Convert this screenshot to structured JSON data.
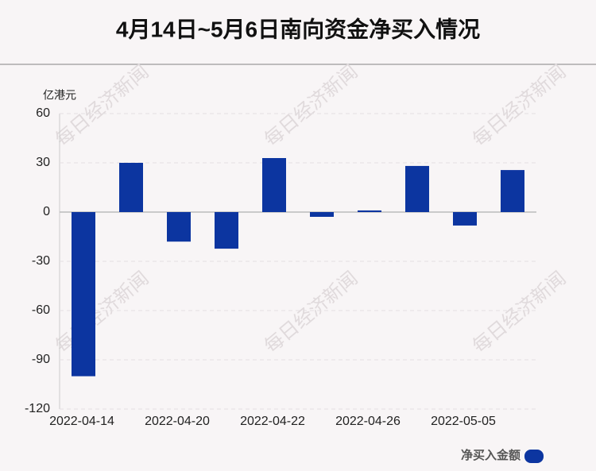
{
  "chart_data": {
    "type": "bar",
    "title": "4月14日~5月6日南向资金净买入情况",
    "y_axis_label": "亿港元",
    "watermark": "每日经济新闻",
    "categories": [
      "2022-04-14",
      null,
      "2022-04-20",
      null,
      "2022-04-22",
      null,
      "2022-04-26",
      null,
      "2022-05-05",
      null
    ],
    "series": [
      {
        "name": "净买入金额",
        "color": "#0c35a0",
        "values": [
          -100,
          30,
          -18,
          -22.3,
          32.9,
          -2.9,
          1,
          28.1,
          -8.2,
          25.6
        ]
      }
    ],
    "ylim": [
      -120,
      60
    ],
    "yticks": [
      -120,
      -90,
      -60,
      -30,
      0,
      30,
      60
    ],
    "grid": true
  }
}
